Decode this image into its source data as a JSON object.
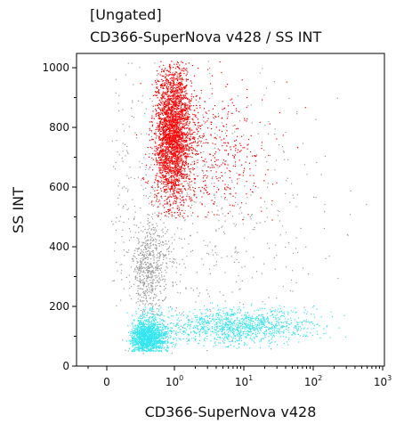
{
  "chart_data": {
    "type": "scatter",
    "title": "[Ungated]",
    "subtitle": "CD366-SuperNova v428 / SS INT",
    "xlabel": "CD366-SuperNova v428",
    "ylabel": "SS INT",
    "x_scale": "biexponential",
    "xlim": [
      -0.5,
      1000
    ],
    "ylim": [
      0,
      1024
    ],
    "x_ticks": [
      {
        "value": 0,
        "base": "0",
        "exp": ""
      },
      {
        "value": 1,
        "base": "10",
        "exp": "0"
      },
      {
        "value": 10,
        "base": "10",
        "exp": "1"
      },
      {
        "value": 100,
        "base": "10",
        "exp": "2"
      },
      {
        "value": 1000,
        "base": "10",
        "exp": "3"
      }
    ],
    "y_ticks": [
      "0",
      "200",
      "400",
      "600",
      "800",
      "1000"
    ],
    "grid": false,
    "legend": "none",
    "series": [
      {
        "color": "#ff0000",
        "populations": [
          {
            "x_center": 0.95,
            "x_spread_decades": 0.13,
            "y_center": 780,
            "y_spread": 120,
            "y_min": 500,
            "y_max": 1024,
            "points": 2600
          },
          {
            "x_center": 3.0,
            "x_spread_decades": 0.4,
            "y_center": 720,
            "y_spread": 120,
            "y_min": 480,
            "y_max": 1024,
            "points": 500
          }
        ]
      },
      {
        "color": "#33e6f0",
        "populations": [
          {
            "x_center": 0.35,
            "x_spread_decades": 0.2,
            "y_center": 95,
            "y_spread": 30,
            "y_min": 50,
            "y_max": 200,
            "points": 1500
          },
          {
            "x_center": 8.0,
            "x_spread_decades": 0.55,
            "y_center": 135,
            "y_spread": 30,
            "y_min": 60,
            "y_max": 220,
            "points": 1100
          }
        ]
      },
      {
        "color": "#9a9a9a",
        "populations": [
          {
            "x_center": 0.4,
            "x_spread_decades": 0.2,
            "y_center": 330,
            "y_spread": 90,
            "y_min": 170,
            "y_max": 520,
            "points": 550
          },
          {
            "x_center": 2.0,
            "x_spread_decades": 1.0,
            "y_center": 520,
            "y_spread": 240,
            "y_min": 30,
            "y_max": 1024,
            "points": 650
          }
        ]
      }
    ]
  }
}
